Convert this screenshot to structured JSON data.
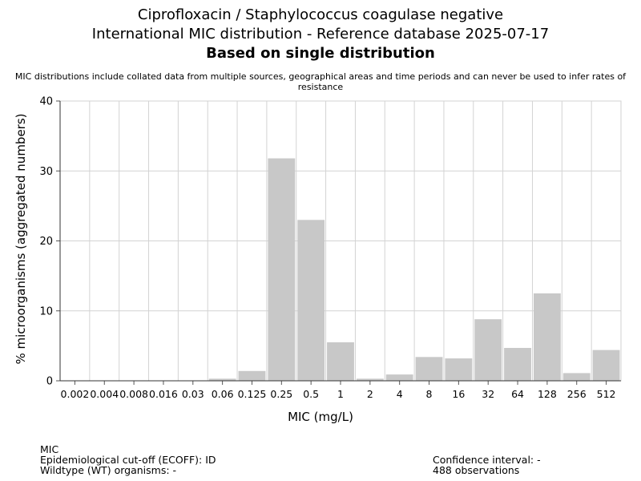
{
  "header": {
    "title_line1": "Ciprofloxacin / Staphylococcus coagulase negative",
    "title_line2": "International MIC distribution - Reference database 2025-07-17",
    "title_line3": "Based on single distribution",
    "subtitle": "MIC distributions include collated data from multiple sources, geographical areas and time periods and can never be used to infer rates of resistance"
  },
  "chart_data": {
    "type": "bar",
    "categories": [
      "0.002",
      "0.004",
      "0.008",
      "0.016",
      "0.03",
      "0.06",
      "0.125",
      "0.25",
      "0.5",
      "1",
      "2",
      "4",
      "8",
      "16",
      "32",
      "64",
      "128",
      "256",
      "512"
    ],
    "values": [
      0,
      0,
      0,
      0,
      0,
      0.3,
      1.4,
      31.8,
      23.0,
      5.5,
      0.3,
      0.9,
      3.4,
      3.2,
      8.8,
      4.7,
      12.5,
      1.1,
      4.4
    ],
    "xlabel": "MIC (mg/L)",
    "ylabel": "% microorganisms (aggregated numbers)",
    "ylim": [
      0,
      40
    ],
    "yticks": [
      0,
      10,
      20,
      30,
      40
    ],
    "grid": true,
    "bar_color": "#c8c8c8"
  },
  "footer": {
    "mic_label": "MIC",
    "ecoff": "Epidemiological cut-off (ECOFF): ID",
    "wildtype": "Wildtype (WT) organisms:  -",
    "confidence": "Confidence interval: -",
    "observations": "488 observations"
  }
}
